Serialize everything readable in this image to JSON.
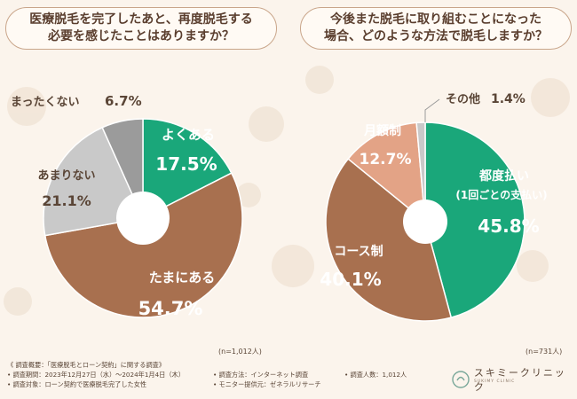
{
  "questions": {
    "left": "医療脱毛を完了したあと、再度脱毛する\n必要を感じたことはありますか？",
    "right": "今後また脱毛に取り組むことになった\n場合、どのような方法で脱毛しますか？"
  },
  "chart_data": [
    {
      "type": "pie",
      "title": "医療脱毛を完了したあと、再度脱毛する必要を感じたことはありますか？",
      "n_label": "(n=1,012人)",
      "slices": [
        {
          "label": "よくある",
          "value": 17.5,
          "display": "17.5%",
          "color": "#1aa77a"
        },
        {
          "label": "たまにある",
          "value": 54.7,
          "display": "54.7%",
          "color": "#a8704f"
        },
        {
          "label": "あまりない",
          "value": 21.1,
          "display": "21.1%",
          "color": "#c9c9c9"
        },
        {
          "label": "まったくない",
          "value": 6.7,
          "display": "6.7%",
          "color": "#9b9b9b"
        }
      ]
    },
    {
      "type": "pie",
      "title": "今後また脱毛に取り組むことになった場合、どのような方法で脱毛しますか？",
      "n_label": "(n=731人)",
      "slices": [
        {
          "label": "都度払い",
          "sublabel": "(1回ごとの支払い)",
          "value": 45.8,
          "display": "45.8%",
          "color": "#1aa77a"
        },
        {
          "label": "コース制",
          "value": 40.1,
          "display": "40.1%",
          "color": "#a8704f"
        },
        {
          "label": "月額制",
          "value": 12.7,
          "display": "12.7%",
          "color": "#e3a386"
        },
        {
          "label": "その他",
          "value": 1.4,
          "display": "1.4%",
          "color": "#c9c9c9"
        }
      ]
    }
  ],
  "footer": {
    "line1": "《 調査概要：「医療脱毛とローン契約」に関する調査》",
    "line2": "• 調査期間：2023年12月27日（水）～2024年1月4日（木）",
    "line3": "• 調査対象：ローン契約で医療脱毛完了した女性",
    "method": "• 調査方法：インターネット調査",
    "monitor": "• モニター提供元：ゼネラルリサーチ",
    "count": "• 調査人数：1,012人"
  },
  "logo": {
    "name": "スキミークリニック",
    "sub": "SUKIMY CLINIC"
  }
}
